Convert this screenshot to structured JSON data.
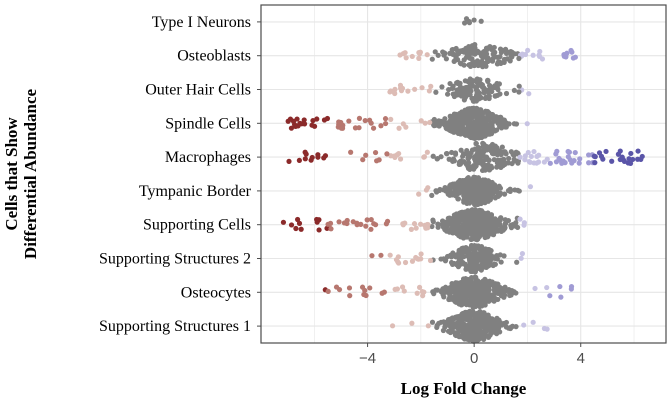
{
  "chart_data": {
    "type": "scatter",
    "subtype": "beeswarm",
    "xlabel": "Log Fold Change",
    "ylabel": "Cells that Show Differential Abundance",
    "xlim": [
      -8.0,
      7.2
    ],
    "x_ticks": [
      -4,
      0,
      4
    ],
    "x_tick_labels": [
      "−4",
      "0",
      "4"
    ],
    "grid": true,
    "legend": "none",
    "colors": {
      "nonsignificant": "#808080",
      "negative_strong": "#8b2a2a",
      "negative_mid": "#b7776f",
      "negative_weak": "#ddbcb5",
      "positive_weak": "#c7c3e3",
      "positive_mid": "#a09bd4",
      "positive_strong": "#5a55a8",
      "panel_border": "#4d4d4d",
      "grid": "#e6e6e6"
    },
    "categories": [
      "Type I Neurons",
      "Osteoblasts",
      "Outer Hair Cells",
      "Spindle Cells",
      "Macrophages",
      "Tympanic Border",
      "Supporting Cells",
      "Supporting Structures 2",
      "Osteocytes",
      "Supporting Structures 1"
    ],
    "series": [
      {
        "category": "Type I Neurons",
        "center_x": -0.1,
        "spread": 0.5,
        "n": 6,
        "band_height": 0.2,
        "neg_tail": 0,
        "neg_tail_min": 0,
        "pos_tail": 0,
        "pos_tail_max": 0
      },
      {
        "category": "Osteoblasts",
        "center_x": 0.2,
        "spread": 1.6,
        "n": 130,
        "band_height": 0.35,
        "neg_tail": 12,
        "neg_tail_min": -2.8,
        "pos_tail": 14,
        "pos_tail_max": 4.1
      },
      {
        "category": "Outer Hair Cells",
        "center_x": 0.0,
        "spread": 1.5,
        "n": 120,
        "band_height": 0.35,
        "neg_tail": 14,
        "neg_tail_min": -3.2,
        "pos_tail": 3,
        "pos_tail_max": 2.2
      },
      {
        "category": "Spindle Cells",
        "center_x": 0.0,
        "spread": 1.3,
        "n": 380,
        "band_height": 0.45,
        "neg_tail": 45,
        "neg_tail_min": -7.0,
        "pos_tail": 0,
        "pos_tail_max": 1.6
      },
      {
        "category": "Macrophages",
        "center_x": 0.3,
        "spread": 1.6,
        "n": 150,
        "band_height": 0.42,
        "neg_tail": 26,
        "neg_tail_min": -7.0,
        "pos_tail": 60,
        "pos_tail_max": 6.6
      },
      {
        "category": "Tympanic Border",
        "center_x": 0.0,
        "spread": 1.2,
        "n": 320,
        "band_height": 0.42,
        "neg_tail": 3,
        "neg_tail_min": -2.2,
        "pos_tail": 2,
        "pos_tail_max": 2.4
      },
      {
        "category": "Supporting Cells",
        "center_x": 0.0,
        "spread": 1.4,
        "n": 380,
        "band_height": 0.45,
        "neg_tail": 45,
        "neg_tail_min": -7.3,
        "pos_tail": 4,
        "pos_tail_max": 2.6
      },
      {
        "category": "Supporting Structures 2",
        "center_x": 0.0,
        "spread": 1.1,
        "n": 200,
        "band_height": 0.4,
        "neg_tail": 16,
        "neg_tail_min": -4.2,
        "pos_tail": 2,
        "pos_tail_max": 2.2
      },
      {
        "category": "Osteocytes",
        "center_x": 0.0,
        "spread": 1.4,
        "n": 320,
        "band_height": 0.45,
        "neg_tail": 22,
        "neg_tail_min": -6.0,
        "pos_tail": 7,
        "pos_tail_max": 3.9
      },
      {
        "category": "Supporting Structures 1",
        "center_x": 0.0,
        "spread": 1.3,
        "n": 330,
        "band_height": 0.45,
        "neg_tail": 3,
        "neg_tail_min": -4.2,
        "pos_tail": 4,
        "pos_tail_max": 2.8
      }
    ]
  }
}
